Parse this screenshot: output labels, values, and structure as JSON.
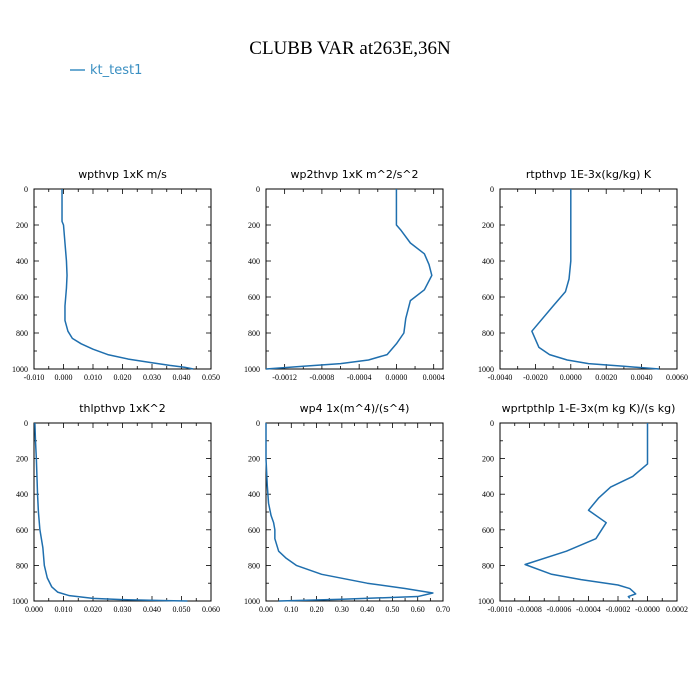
{
  "figure": {
    "title": "CLUBB VAR at263E,36N",
    "legend": [
      {
        "label": "kt_test1",
        "color": "#3a8fc2"
      }
    ],
    "series_color": "#1f6fae"
  },
  "chart_data": [
    {
      "type": "line",
      "title": "wpthvp   1xK  m/s",
      "xlim": [
        -0.01,
        0.05
      ],
      "xticks": [
        "-0.010",
        "0.000",
        "0.010",
        "0.020",
        "0.030",
        "0.040",
        "0.050"
      ],
      "ylim": [
        0,
        1000
      ],
      "yticks": [
        "0",
        "200",
        "400",
        "600",
        "800",
        "1000"
      ],
      "y_inverted": true,
      "series": [
        {
          "name": "kt_test1",
          "x": [
            -0.0005,
            -0.0005,
            -0.0005,
            0.0,
            0.0005,
            0.001,
            0.0012,
            0.001,
            0.0005,
            0.0005,
            0.0015,
            0.003,
            0.006,
            0.01,
            0.015,
            0.022,
            0.03,
            0.036,
            0.041,
            0.044
          ],
          "y": [
            0,
            100,
            180,
            200,
            300,
            400,
            480,
            550,
            650,
            730,
            790,
            830,
            860,
            890,
            920,
            945,
            965,
            980,
            990,
            1000
          ]
        }
      ]
    },
    {
      "type": "line",
      "title": "wp2thvp   1xK  m^2/s^2",
      "xlim": [
        -0.0014,
        0.0005
      ],
      "xticks": [
        "-0.0012",
        "-0.0008",
        "-0.0004",
        "0.0000",
        "0.0004"
      ],
      "ylim": [
        0,
        1000
      ],
      "yticks": [
        "0",
        "200",
        "400",
        "600",
        "800",
        "1000"
      ],
      "y_inverted": true,
      "series": [
        {
          "name": "kt_test1",
          "x": [
            0.0,
            0.0,
            0.0,
            5e-05,
            0.00015,
            0.0003,
            0.00035,
            0.00038,
            0.0003,
            0.00015,
            0.0001,
            8e-05,
            0.0,
            -0.0001,
            -0.0003,
            -0.0006,
            -0.001,
            -0.0014
          ],
          "y": [
            0,
            100,
            200,
            230,
            300,
            360,
            420,
            480,
            560,
            620,
            720,
            800,
            860,
            920,
            950,
            970,
            985,
            1000
          ]
        }
      ]
    },
    {
      "type": "line",
      "title": "rtpthvp   1E-3x(kg/kg) K",
      "xlim": [
        -0.004,
        0.006
      ],
      "xticks": [
        "-0.0040",
        "-0.0020",
        "0.0000",
        "0.0020",
        "0.0040",
        "0.0060"
      ],
      "ylim": [
        0,
        1000
      ],
      "yticks": [
        "0",
        "200",
        "400",
        "600",
        "800",
        "1000"
      ],
      "y_inverted": true,
      "series": [
        {
          "name": "kt_test1",
          "x": [
            0.0,
            0.0,
            0.0,
            -0.0001,
            -0.0003,
            -0.001,
            -0.0022,
            -0.0018,
            -0.0012,
            -0.0002,
            0.001,
            0.003,
            0.005
          ],
          "y": [
            0,
            200,
            400,
            500,
            570,
            650,
            790,
            880,
            920,
            950,
            970,
            985,
            1000
          ]
        }
      ]
    },
    {
      "type": "line",
      "title": "thlpthvp   1xK^2",
      "xlim": [
        0.0,
        0.06
      ],
      "xticks": [
        "0.000",
        "0.010",
        "0.020",
        "0.030",
        "0.040",
        "0.050",
        "0.060"
      ],
      "ylim": [
        0,
        1000
      ],
      "yticks": [
        "0",
        "200",
        "400",
        "600",
        "800",
        "1000"
      ],
      "y_inverted": true,
      "series": [
        {
          "name": "kt_test1",
          "x": [
            0.0003,
            0.0005,
            0.0008,
            0.001,
            0.0012,
            0.0015,
            0.002,
            0.003,
            0.0035,
            0.0045,
            0.006,
            0.008,
            0.012,
            0.02,
            0.03,
            0.045,
            0.052
          ],
          "y": [
            0,
            100,
            200,
            300,
            400,
            500,
            600,
            700,
            800,
            870,
            920,
            950,
            970,
            985,
            992,
            998,
            1000
          ]
        }
      ]
    },
    {
      "type": "line",
      "title": "wp4   1x(m^4)/(s^4)",
      "xlim": [
        0.0,
        0.7
      ],
      "xticks": [
        "0.00",
        "0.10",
        "0.20",
        "0.30",
        "0.40",
        "0.50",
        "0.60",
        "0.70"
      ],
      "ylim": [
        0,
        1000
      ],
      "yticks": [
        "0",
        "200",
        "400",
        "600",
        "800",
        "1000"
      ],
      "y_inverted": true,
      "series": [
        {
          "name": "kt_test1",
          "x": [
            0.0,
            0.0,
            0.005,
            0.01,
            0.02,
            0.03,
            0.035,
            0.035,
            0.05,
            0.08,
            0.12,
            0.22,
            0.4,
            0.55,
            0.66,
            0.6,
            0.3,
            0.05
          ],
          "y": [
            0,
            200,
            350,
            450,
            520,
            560,
            600,
            650,
            720,
            760,
            800,
            850,
            900,
            930,
            955,
            975,
            990,
            1000
          ]
        }
      ]
    },
    {
      "type": "line",
      "title": "wprtpthlp   1-E-3x(m kg K)/(s kg)",
      "xlim": [
        -0.001,
        0.0002
      ],
      "xticks": [
        "-0.0010",
        "-0.0008",
        "-0.0006",
        "-0.0004",
        "-0.0002",
        "-0.0000",
        "0.0002"
      ],
      "ylim": [
        0,
        1000
      ],
      "yticks": [
        "0",
        "200",
        "400",
        "600",
        "800",
        "1000"
      ],
      "y_inverted": true,
      "series": [
        {
          "name": "kt_test1",
          "x": [
            0.0,
            0.0,
            0.0,
            -0.0001,
            -0.00025,
            -0.00033,
            -0.0004,
            -0.00028,
            -0.00035,
            -0.00055,
            -0.00083,
            -0.00065,
            -0.00045,
            -0.0002,
            -0.00012,
            -8e-05,
            -0.00013,
            -0.00012
          ],
          "y": [
            0,
            100,
            230,
            300,
            360,
            420,
            490,
            560,
            650,
            720,
            795,
            850,
            880,
            910,
            930,
            960,
            975,
            985
          ]
        }
      ]
    }
  ]
}
